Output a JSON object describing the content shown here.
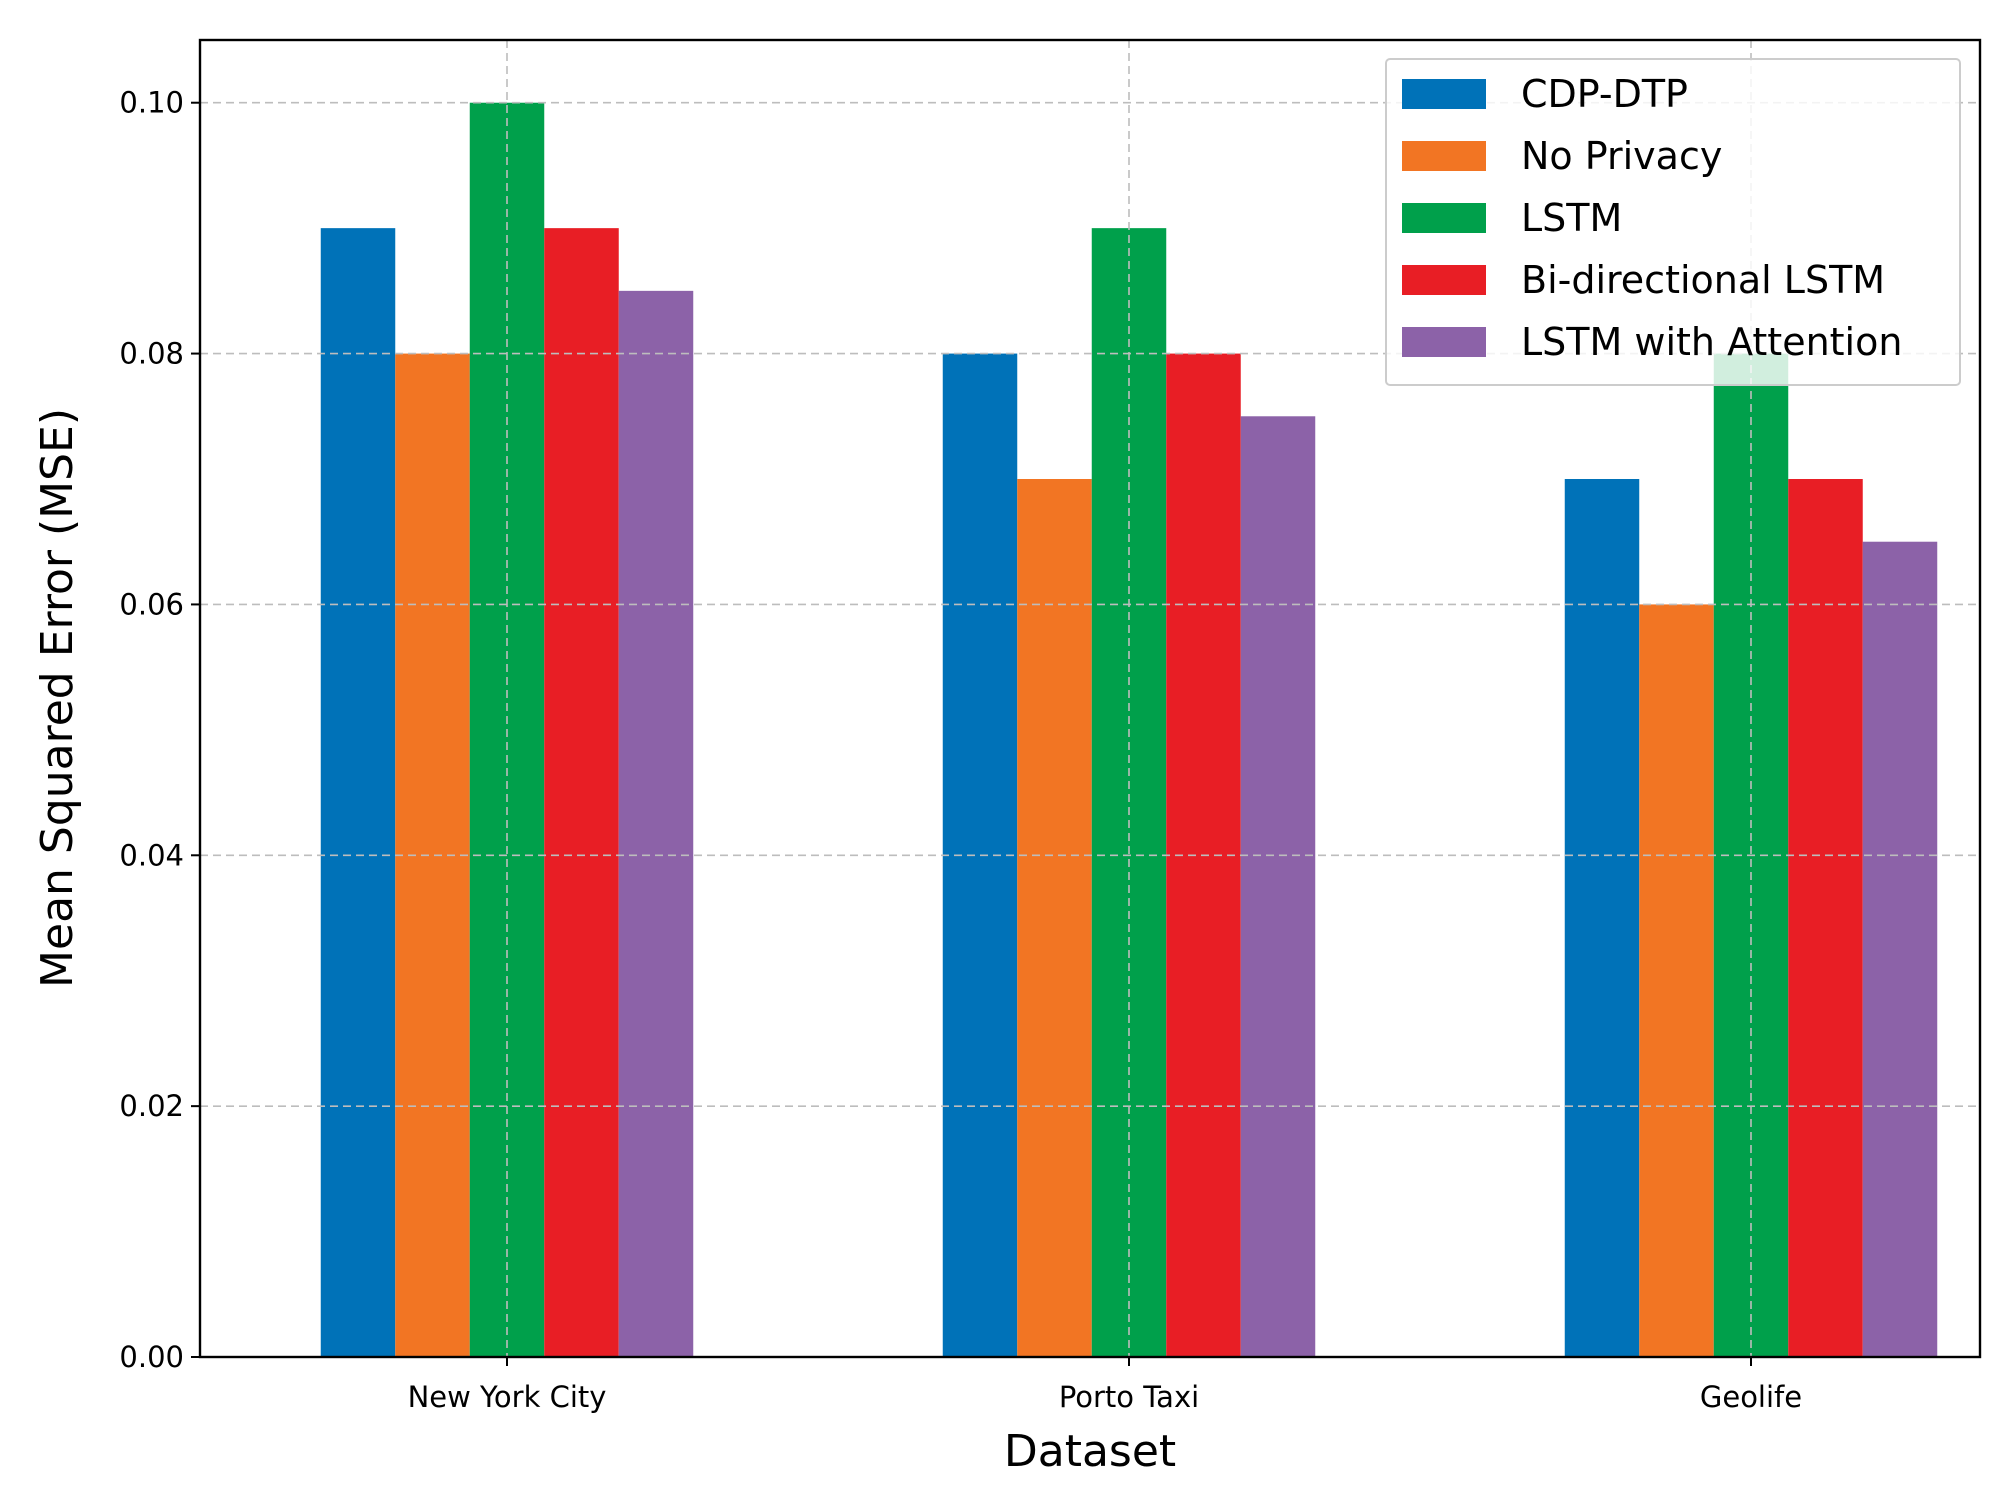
{
  "chart_data": {
    "type": "bar",
    "categories": [
      "New York City",
      "Porto Taxi",
      "Geolife"
    ],
    "series": [
      {
        "name": "CDP-DTP",
        "values": [
          0.09,
          0.08,
          0.07
        ],
        "color": "#0072b8"
      },
      {
        "name": "No Privacy",
        "values": [
          0.08,
          0.07,
          0.06
        ],
        "color": "#f27523"
      },
      {
        "name": "LSTM",
        "values": [
          0.1,
          0.09,
          0.08
        ],
        "color": "#00a04b"
      },
      {
        "name": "Bi-directional LSTM",
        "values": [
          0.09,
          0.08,
          0.07
        ],
        "color": "#e81e25"
      },
      {
        "name": "LSTM with Attention",
        "values": [
          0.085,
          0.075,
          0.065
        ],
        "color": "#8c62a8"
      }
    ],
    "title": "",
    "xlabel": "Dataset",
    "ylabel": "Mean Squared Error (MSE)",
    "ylim": [
      0,
      0.105
    ],
    "yticks": [
      0.0,
      0.02,
      0.04,
      0.06,
      0.08,
      0.1
    ],
    "ytick_labels": [
      "0.00",
      "0.02",
      "0.04",
      "0.06",
      "0.08",
      "0.10"
    ],
    "grid": true,
    "legend_position": "top-right"
  }
}
